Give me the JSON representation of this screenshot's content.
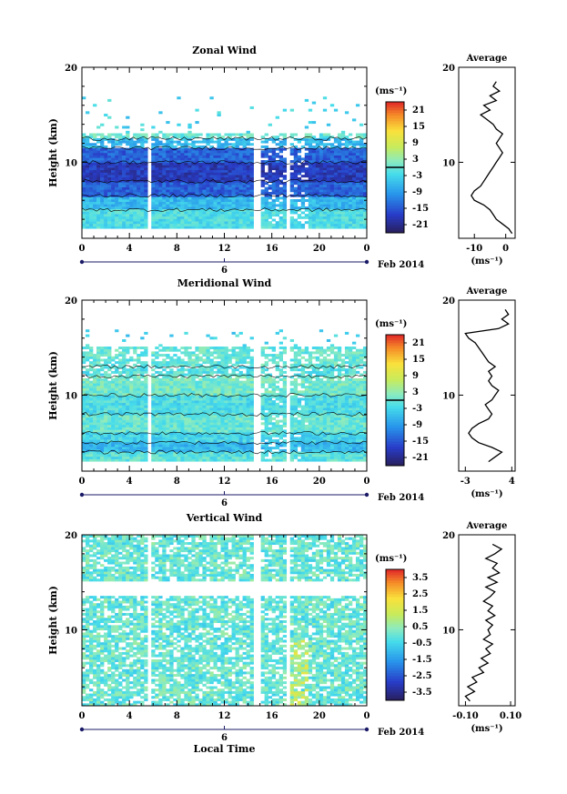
{
  "chart_data": [
    {
      "type": "heatmap",
      "title": "Zonal Wind",
      "ylabel": "Height (km)",
      "xlabel": "",
      "date_label": "6",
      "month_label": "Feb 2014",
      "x_ticks": [
        "0",
        "4",
        "8",
        "12",
        "16",
        "20",
        "0"
      ],
      "y_ticks": [
        "20",
        "10"
      ],
      "xlim": [
        0,
        24
      ],
      "ylim": [
        2,
        20
      ],
      "colorbar": {
        "unit": "(ms⁻¹)",
        "ticks": [
          "21",
          "15",
          "9",
          "3",
          "-3",
          "-9",
          "-15",
          "-21"
        ],
        "range": [
          -24,
          24
        ]
      },
      "gaps": [
        [
          5.4,
          5.9
        ],
        [
          14.4,
          15.2
        ],
        [
          17.2,
          17.6
        ]
      ],
      "bands": [
        [
          3,
          5,
          -2
        ],
        [
          5,
          6.5,
          -6
        ],
        [
          6.5,
          8,
          -14
        ],
        [
          8,
          10,
          -18
        ],
        [
          10,
          11.5,
          -14
        ],
        [
          11.5,
          12.5,
          -6
        ],
        [
          12.5,
          13,
          0
        ]
      ],
      "average": {
        "title": "Average",
        "ylabel": "",
        "xlabel": "(ms⁻¹)",
        "x_ticks": [
          "-10",
          "0"
        ],
        "y_ticks": [
          "20",
          "10"
        ],
        "xlim": [
          -15,
          3
        ],
        "ylim": [
          2,
          20
        ],
        "profile_height": [
          2.5,
          3,
          3.5,
          4,
          4.5,
          5,
          5.5,
          6,
          6.5,
          7,
          7.5,
          8,
          8.5,
          9,
          9.5,
          10,
          10.5,
          11,
          11.5,
          12,
          12.5,
          13,
          13.5,
          14,
          14.5,
          15,
          15.5,
          16,
          16.5,
          17,
          17.5,
          18,
          18.5
        ],
        "profile_value": [
          2,
          1,
          -1,
          -3,
          -4,
          -5,
          -7,
          -10,
          -11,
          -10,
          -8,
          -7,
          -6,
          -5,
          -4,
          -3,
          -2,
          -1,
          -2,
          -3,
          -2,
          -1,
          -3,
          -4,
          -6,
          -8,
          -5,
          -7,
          -3,
          -5,
          -2,
          -4,
          -3
        ]
      }
    },
    {
      "type": "heatmap",
      "title": "Meridional Wind",
      "ylabel": "Height (km)",
      "xlabel": "",
      "date_label": "6",
      "month_label": "Feb 2014",
      "x_ticks": [
        "0",
        "4",
        "8",
        "12",
        "16",
        "20",
        "0"
      ],
      "y_ticks": [
        "20",
        "10"
      ],
      "xlim": [
        0,
        24
      ],
      "ylim": [
        2,
        20
      ],
      "colorbar": {
        "unit": "(ms⁻¹)",
        "ticks": [
          "21",
          "15",
          "9",
          "3",
          "-3",
          "-9",
          "-15",
          "-21"
        ],
        "range": [
          -24,
          24
        ]
      },
      "gaps": [
        [
          5.4,
          5.9
        ],
        [
          14.4,
          15.2
        ],
        [
          17.2,
          17.6
        ]
      ],
      "bands": [
        [
          3,
          4,
          -1
        ],
        [
          4,
          5,
          -6
        ],
        [
          5,
          6,
          -3
        ],
        [
          6,
          8,
          0
        ],
        [
          8,
          10,
          -2
        ],
        [
          10,
          12,
          1
        ],
        [
          12,
          13,
          -1
        ],
        [
          13,
          15,
          0
        ]
      ],
      "average": {
        "title": "Average",
        "ylabel": "",
        "xlabel": "(ms⁻¹)",
        "x_ticks": [
          "-3",
          "4"
        ],
        "y_ticks": [
          "20",
          "10"
        ],
        "xlim": [
          -4,
          4.5
        ],
        "ylim": [
          2,
          20
        ],
        "profile_height": [
          3,
          3.5,
          4,
          4.5,
          5,
          5.5,
          6,
          6.5,
          7,
          7.5,
          8,
          8.5,
          9,
          9.5,
          10,
          10.5,
          11,
          11.5,
          12,
          12.5,
          13,
          13.5,
          14,
          14.5,
          15,
          15.5,
          16,
          16.5,
          17,
          17.5,
          18,
          18.5,
          19
        ],
        "profile_value": [
          0.5,
          1.5,
          2.5,
          1,
          -1,
          -2,
          -2.5,
          -2,
          -1,
          0.5,
          1,
          0.5,
          0,
          1,
          1.5,
          2,
          1,
          0.5,
          1,
          0.5,
          1.5,
          0.5,
          0,
          -0.5,
          -1,
          -1.5,
          -2.5,
          -3,
          2,
          3.5,
          2.5,
          3.5,
          3
        ]
      }
    },
    {
      "type": "heatmap",
      "title": "Vertical Wind",
      "ylabel": "Height (km)",
      "xlabel": "Local Time",
      "date_label": "6",
      "month_label": "Feb 2014",
      "x_ticks": [
        "0",
        "4",
        "8",
        "12",
        "16",
        "20",
        "0"
      ],
      "y_ticks": [
        "20",
        "10"
      ],
      "xlim": [
        0,
        24
      ],
      "ylim": [
        2,
        20
      ],
      "colorbar": {
        "unit": "(ms⁻¹)",
        "ticks": [
          "3.5",
          "2.5",
          "1.5",
          "0.5",
          "-0.5",
          "-1.5",
          "-2.5",
          "-3.5"
        ],
        "range": [
          -4,
          4
        ]
      },
      "gaps": [
        [
          5.4,
          5.9
        ],
        [
          14.4,
          15.2
        ],
        [
          17.2,
          17.6
        ]
      ],
      "bands": [
        [
          2,
          20,
          0
        ]
      ],
      "average": {
        "title": "Average",
        "ylabel": "",
        "xlabel": "(ms⁻¹)",
        "x_ticks": [
          "-0.10",
          "0.10"
        ],
        "y_ticks": [
          "20",
          "10"
        ],
        "xlim": [
          -0.13,
          0.12
        ],
        "ylim": [
          2,
          20
        ],
        "profile_height": [
          2.5,
          3,
          3.5,
          4,
          4.5,
          5,
          5.5,
          6,
          6.5,
          7,
          7.5,
          8,
          8.5,
          9,
          9.5,
          10,
          10.5,
          11,
          11.5,
          12,
          12.5,
          13,
          13.5,
          14,
          14.5,
          15,
          15.5,
          16,
          16.5,
          17,
          17.5,
          18,
          18.5,
          19
        ],
        "profile_value": [
          -0.08,
          -0.1,
          -0.06,
          -0.09,
          -0.05,
          -0.07,
          -0.02,
          -0.04,
          0.0,
          -0.03,
          0.01,
          -0.01,
          0.02,
          -0.02,
          0.01,
          0.0,
          0.02,
          -0.01,
          0.03,
          0.0,
          0.02,
          -0.02,
          0.01,
          0.03,
          -0.01,
          0.04,
          0.0,
          0.05,
          0.02,
          0.04,
          -0.01,
          0.03,
          0.06,
          0.02
        ]
      }
    }
  ]
}
